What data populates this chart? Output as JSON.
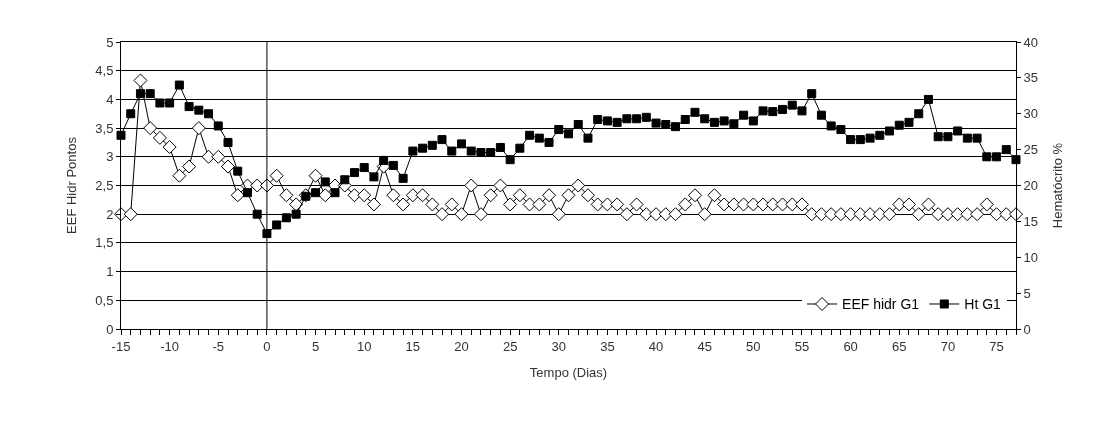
{
  "chart_data": {
    "type": "line",
    "xlabel": "Tempo (Dias)",
    "ylabel": "EEF Hidr Pontos",
    "y2label": "Hematócrito %",
    "x": [
      -15,
      -14,
      -13,
      -12,
      -11,
      -10,
      -9,
      -8,
      -7,
      -6,
      -5,
      -4,
      -3,
      -2,
      -1,
      0,
      1,
      2,
      3,
      4,
      5,
      6,
      7,
      8,
      9,
      10,
      11,
      12,
      13,
      14,
      15,
      16,
      17,
      18,
      19,
      20,
      21,
      22,
      23,
      24,
      25,
      26,
      27,
      28,
      29,
      30,
      31,
      32,
      33,
      34,
      35,
      36,
      37,
      38,
      39,
      40,
      41,
      42,
      43,
      44,
      45,
      46,
      47,
      48,
      49,
      50,
      51,
      52,
      53,
      54,
      55,
      56,
      57,
      58,
      59,
      60,
      61,
      62,
      63,
      64,
      65,
      66,
      67,
      68,
      69,
      70,
      71,
      72,
      73,
      74,
      75,
      76,
      77
    ],
    "series": [
      {
        "name": "EEF hidr G1",
        "color": "#000000",
        "marker": "diamond",
        "values": [
          2,
          2,
          4.33,
          3.5,
          3.33,
          3.17,
          2.67,
          2.83,
          3.5,
          3,
          3,
          2.83,
          2.33,
          2.5,
          2.5,
          2.5,
          2.67,
          2.33,
          2.17,
          2.33,
          2.67,
          2.33,
          2.5,
          2.5,
          2.33,
          2.33,
          2.17,
          2.83,
          2.33,
          2.17,
          2.33,
          2.33,
          2.17,
          2,
          2.17,
          2,
          2.5,
          2,
          2.33,
          2.5,
          2.17,
          2.33,
          2.17,
          2.17,
          2.33,
          2,
          2.33,
          2.5,
          2.33,
          2.17,
          2.17,
          2.17,
          2,
          2.17,
          2,
          2,
          2,
          2,
          2.17,
          2.33,
          2,
          2.33,
          2.17,
          2.17,
          2.17,
          2.17,
          2.17,
          2.17,
          2.17,
          2.17,
          2.17,
          2,
          2,
          2,
          2,
          2,
          2,
          2,
          2,
          2,
          2.17,
          2.17,
          2,
          2.17,
          2,
          2,
          2,
          2,
          2,
          2.17,
          2,
          2,
          2
        ]
      },
      {
        "name": "Ht G1",
        "color": "#000000",
        "marker": "square",
        "axis": "y2",
        "values": [
          27,
          30,
          32.8,
          32.8,
          31.5,
          31.5,
          34,
          31,
          30.5,
          30,
          28.3,
          26,
          22,
          19,
          16,
          13.3,
          14.5,
          15.5,
          16,
          18.5,
          19,
          20.5,
          19,
          20.8,
          21.8,
          22.5,
          21.2,
          23.5,
          22.8,
          21,
          24.8,
          25.2,
          25.6,
          26.4,
          24.8,
          25.8,
          24.8,
          24.6,
          24.6,
          25.3,
          23.6,
          25.2,
          27,
          26.6,
          26,
          27.8,
          27.2,
          28.5,
          26.6,
          29.2,
          29,
          28.8,
          29.3,
          29.3,
          29.5,
          28.7,
          28.5,
          28.2,
          29.2,
          30.2,
          29.3,
          28.8,
          29,
          28.6,
          29.8,
          29,
          30.4,
          30.3,
          30.6,
          31.2,
          30.4,
          32.8,
          29.8,
          28.3,
          27.8,
          26.4,
          26.4,
          26.6,
          27,
          27.6,
          28.4,
          28.8,
          30,
          32,
          26.8,
          26.8,
          27.6,
          26.6,
          26.6,
          24,
          24,
          25,
          23.6
        ]
      }
    ],
    "xlim": [
      -15,
      77
    ],
    "xticks": [
      -15,
      -10,
      -5,
      0,
      5,
      10,
      15,
      20,
      25,
      30,
      35,
      40,
      45,
      50,
      55,
      60,
      65,
      70,
      75
    ],
    "ylim": [
      0,
      5
    ],
    "yticks": [
      0,
      {
        "value": 0.5,
        "label": "0,5"
      },
      1,
      {
        "value": 1.5,
        "label": "1,5"
      },
      2,
      {
        "value": 2.5,
        "label": "2,5"
      },
      3,
      {
        "value": 3.5,
        "label": "3,5"
      },
      4,
      {
        "value": 4.5,
        "label": "4,5"
      },
      5
    ],
    "y2lim": [
      0,
      40
    ],
    "y2ticks": [
      0,
      5,
      10,
      15,
      20,
      25,
      30,
      35,
      40
    ],
    "ref_lines": [
      {
        "axis": "x",
        "value": 0,
        "color": "#000000"
      }
    ],
    "grid": "y",
    "legend": "bottom right",
    "line_style": "solid"
  }
}
